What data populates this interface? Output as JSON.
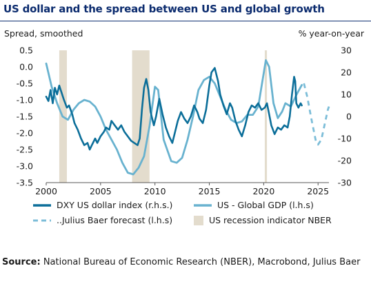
{
  "header": {
    "title": "US dollar and the spread between US and global growth"
  },
  "footer": {
    "source_label": "Source:",
    "source_text": " National Bureau of Economic Research (NBER), Macrobond, Julius Baer"
  },
  "chart_data": {
    "type": "line",
    "left_axis_title": "Spread, smoothed",
    "right_axis_title": "% year-on-year",
    "x_range": [
      2000,
      2026
    ],
    "x_ticks": [
      2000,
      2005,
      2010,
      2015,
      2020,
      2025
    ],
    "left_range": [
      -3.5,
      0.5
    ],
    "left_ticks": [
      "0.5",
      "0.0",
      "-0.5",
      "-1.0",
      "-1.5",
      "-2.0",
      "-2.5",
      "-3.0",
      "-3.5"
    ],
    "right_range": [
      -30,
      30
    ],
    "right_ticks": [
      "30",
      "20",
      "10",
      "0",
      "-10",
      "-20",
      "-30"
    ],
    "colors": {
      "dxy": "#0b6e99",
      "gdp": "#68b2cf",
      "forecast": "#7cbdd8",
      "recession": "#e3dccd"
    },
    "recessions": [
      [
        2001.2,
        2001.9
      ],
      [
        2007.9,
        2009.5
      ],
      [
        2020.1,
        2020.3
      ]
    ],
    "legend": [
      {
        "key": "dxy",
        "label": "DXY US dollar index (r.h.s.)"
      },
      {
        "key": "gdp",
        "label": "US - Global GDP (l.h.s)"
      },
      {
        "key": "forecast",
        "label": "..Julius Baer forecast (l.h.s)"
      },
      {
        "key": "recession",
        "label": "US recession indicator NBER"
      }
    ],
    "series": [
      {
        "key": "gdp",
        "axis": "left",
        "points": [
          [
            2000,
            0.1
          ],
          [
            2000.5,
            -0.6
          ],
          [
            2001,
            -1.1
          ],
          [
            2001.5,
            -1.5
          ],
          [
            2002,
            -1.6
          ],
          [
            2002.5,
            -1.3
          ],
          [
            2003,
            -1.1
          ],
          [
            2003.5,
            -1.0
          ],
          [
            2004,
            -1.05
          ],
          [
            2004.5,
            -1.2
          ],
          [
            2005,
            -1.5
          ],
          [
            2005.5,
            -1.9
          ],
          [
            2006,
            -2.2
          ],
          [
            2006.5,
            -2.5
          ],
          [
            2007,
            -2.9
          ],
          [
            2007.5,
            -3.2
          ],
          [
            2008,
            -3.25
          ],
          [
            2008.5,
            -3.05
          ],
          [
            2009,
            -2.7
          ],
          [
            2009.5,
            -1.8
          ],
          [
            2010,
            -0.6
          ],
          [
            2010.3,
            -0.7
          ],
          [
            2010.8,
            -2.2
          ],
          [
            2011.5,
            -2.85
          ],
          [
            2012,
            -2.9
          ],
          [
            2012.5,
            -2.75
          ],
          [
            2013,
            -2.2
          ],
          [
            2013.5,
            -1.5
          ],
          [
            2014,
            -0.7
          ],
          [
            2014.5,
            -0.4
          ],
          [
            2015,
            -0.3
          ],
          [
            2015.5,
            -0.5
          ],
          [
            2016,
            -0.9
          ],
          [
            2016.5,
            -1.3
          ],
          [
            2017,
            -1.6
          ],
          [
            2017.5,
            -1.7
          ],
          [
            2018,
            -1.65
          ],
          [
            2018.5,
            -1.45
          ],
          [
            2019,
            -1.45
          ],
          [
            2019.5,
            -1.2
          ],
          [
            2019.8,
            -0.6
          ],
          [
            2020.2,
            0.2
          ],
          [
            2020.5,
            0.0
          ],
          [
            2020.9,
            -1.1
          ],
          [
            2021.3,
            -1.55
          ],
          [
            2021.7,
            -1.35
          ],
          [
            2022,
            -1.1
          ],
          [
            2022.5,
            -1.2
          ],
          [
            2023,
            -0.85
          ],
          [
            2023.5,
            -0.55
          ]
        ]
      },
      {
        "key": "forecast",
        "axis": "left",
        "points": [
          [
            2023.7,
            -0.5
          ],
          [
            2024,
            -0.9
          ],
          [
            2024.4,
            -1.6
          ],
          [
            2024.8,
            -2.25
          ],
          [
            2025,
            -2.35
          ],
          [
            2025.3,
            -2.2
          ],
          [
            2025.6,
            -1.75
          ],
          [
            2025.9,
            -1.3
          ],
          [
            2026,
            -1.2
          ]
        ]
      },
      {
        "key": "dxy",
        "axis": "right",
        "points": [
          [
            2000,
            9
          ],
          [
            2000.2,
            7
          ],
          [
            2000.4,
            12
          ],
          [
            2000.6,
            6
          ],
          [
            2000.8,
            13
          ],
          [
            2001,
            10
          ],
          [
            2001.2,
            14
          ],
          [
            2001.4,
            11
          ],
          [
            2001.6,
            8
          ],
          [
            2001.9,
            4
          ],
          [
            2002.1,
            5
          ],
          [
            2002.4,
            1
          ],
          [
            2002.6,
            -3
          ],
          [
            2002.9,
            -6
          ],
          [
            2003.2,
            -10
          ],
          [
            2003.5,
            -13
          ],
          [
            2003.8,
            -12
          ],
          [
            2004.0,
            -15
          ],
          [
            2004.2,
            -13
          ],
          [
            2004.5,
            -10
          ],
          [
            2004.7,
            -12
          ],
          [
            2005,
            -9
          ],
          [
            2005.3,
            -7
          ],
          [
            2005.5,
            -5
          ],
          [
            2005.8,
            -6
          ],
          [
            2006,
            -2
          ],
          [
            2006.3,
            -4
          ],
          [
            2006.6,
            -6
          ],
          [
            2006.9,
            -4
          ],
          [
            2007.2,
            -7
          ],
          [
            2007.5,
            -9
          ],
          [
            2007.8,
            -11
          ],
          [
            2008.1,
            -12
          ],
          [
            2008.4,
            -13
          ],
          [
            2008.6,
            -10
          ],
          [
            2008.8,
            3
          ],
          [
            2009.0,
            13
          ],
          [
            2009.2,
            17
          ],
          [
            2009.4,
            12
          ],
          [
            2009.6,
            2
          ],
          [
            2009.9,
            -4
          ],
          [
            2010.1,
            0
          ],
          [
            2010.4,
            8
          ],
          [
            2010.7,
            1
          ],
          [
            2011.0,
            -5
          ],
          [
            2011.3,
            -9
          ],
          [
            2011.6,
            -12
          ],
          [
            2011.8,
            -8
          ],
          [
            2012.1,
            -2
          ],
          [
            2012.4,
            2
          ],
          [
            2012.7,
            -1
          ],
          [
            2013.0,
            -3
          ],
          [
            2013.3,
            0
          ],
          [
            2013.6,
            5
          ],
          [
            2013.9,
            2
          ],
          [
            2014.1,
            -1
          ],
          [
            2014.4,
            -3
          ],
          [
            2014.7,
            3
          ],
          [
            2015.0,
            14
          ],
          [
            2015.2,
            20
          ],
          [
            2015.5,
            22
          ],
          [
            2015.8,
            16
          ],
          [
            2016.0,
            10
          ],
          [
            2016.3,
            5
          ],
          [
            2016.6,
            1
          ],
          [
            2016.9,
            6
          ],
          [
            2017.1,
            4
          ],
          [
            2017.4,
            -2
          ],
          [
            2017.7,
            -6
          ],
          [
            2018,
            -9
          ],
          [
            2018.3,
            -4
          ],
          [
            2018.6,
            2
          ],
          [
            2018.9,
            5
          ],
          [
            2019.2,
            4
          ],
          [
            2019.5,
            6
          ],
          [
            2019.8,
            3
          ],
          [
            2020.1,
            4
          ],
          [
            2020.3,
            6
          ],
          [
            2020.5,
            1
          ],
          [
            2020.7,
            -4
          ],
          [
            2021.0,
            -8
          ],
          [
            2021.3,
            -5
          ],
          [
            2021.6,
            -6
          ],
          [
            2021.9,
            -4
          ],
          [
            2022.2,
            -5
          ],
          [
            2022.4,
            0
          ],
          [
            2022.6,
            10
          ],
          [
            2022.8,
            18
          ],
          [
            2022.9,
            16
          ],
          [
            2023.0,
            6
          ],
          [
            2023.2,
            4
          ],
          [
            2023.4,
            6
          ],
          [
            2023.5,
            5
          ]
        ]
      }
    ]
  }
}
